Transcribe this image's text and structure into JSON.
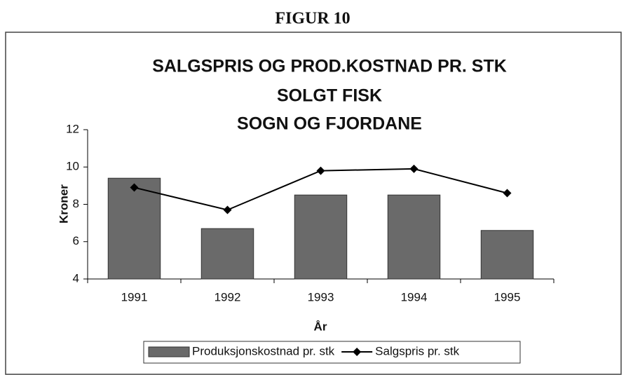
{
  "figure_label": "FIGUR 10",
  "chart_data": {
    "type": "bar_line",
    "title": [
      "SALGSPRIS OG PROD.KOSTNAD PR. STK",
      "SOLGT FISK",
      "SOGN OG FJORDANE"
    ],
    "xlabel": "År",
    "ylabel": "Kroner",
    "categories": [
      "1991",
      "1992",
      "1993",
      "1994",
      "1995"
    ],
    "series": [
      {
        "name": "Produksjonskostnad pr. stk",
        "type": "bar",
        "color": "#6a6a6a",
        "values": [
          9.4,
          6.7,
          8.5,
          8.5,
          6.6
        ]
      },
      {
        "name": "Salgspris pr. stk",
        "type": "line",
        "color": "#000000",
        "values": [
          8.9,
          7.7,
          9.8,
          9.9,
          8.6
        ]
      }
    ],
    "ylim": [
      4,
      12
    ],
    "yticks": [
      4,
      6,
      8,
      10,
      12
    ],
    "grid": false,
    "legend": "bottom"
  }
}
